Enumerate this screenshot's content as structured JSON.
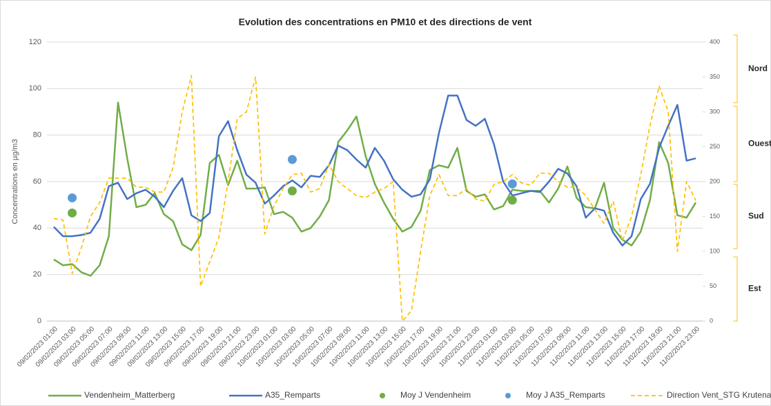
{
  "chart_data": {
    "type": "line",
    "title": "Evolution des concentrations en PM10 et des directions de vent",
    "y_label": "Concentrations en µg/m3",
    "categories": [
      "09/02/2023 01:00",
      null,
      "09/02/2023 03:00",
      null,
      "09/02/2023 05:00",
      null,
      "09/02/2023 07:00",
      null,
      "09/02/2023 09:00",
      null,
      "09/02/2023 11:00",
      null,
      "09/02/2023 13:00",
      null,
      "09/02/2023 15:00",
      null,
      "09/02/2023 17:00",
      null,
      "09/02/2023 19:00",
      null,
      "09/02/2023 21:00",
      null,
      "09/02/2023 23:00",
      null,
      "10/02/2023 01:00",
      null,
      "10/02/2023 03:00",
      null,
      "10/02/2023 05:00",
      null,
      "10/02/2023 07:00",
      null,
      "10/02/2023 09:00",
      null,
      "10/02/2023 11:00",
      null,
      "10/02/2023 13:00",
      null,
      "10/02/2023 15:00",
      null,
      "10/02/2023 17:00",
      null,
      "10/02/2023 19:00",
      null,
      "10/02/2023 21:00",
      null,
      "10/02/2023 23:00",
      null,
      "11/02/2023 01:00",
      null,
      "11/02/2023 03:00",
      null,
      "11/02/2023 05:00",
      null,
      "11/02/2023 07:00",
      null,
      "11/02/2023 09:00",
      null,
      "11/02/2023 11:00",
      null,
      "11/02/2023 13:00",
      null,
      "11/02/2023 15:00",
      null,
      "11/02/2023 17:00",
      null,
      "11/02/2023 19:00",
      null,
      "11/02/2023 21:00",
      null,
      "11/02/2023 23:00"
    ],
    "series": [
      {
        "name": "Vendenheim_Matterberg",
        "color": "#70ad47",
        "type": "line",
        "values": [
          26.5,
          24,
          24.5,
          21,
          19.5,
          24,
          36.5,
          94,
          70,
          49,
          50,
          55,
          46,
          43,
          33,
          30.5,
          37,
          68,
          71.5,
          58.5,
          69,
          57,
          57,
          57.5,
          46,
          47,
          44.5,
          38.5,
          40,
          45,
          52,
          77,
          82,
          88,
          71,
          59,
          51,
          44,
          38.5,
          40.5,
          47.5,
          65,
          67,
          66,
          74.5,
          56,
          53.5,
          54.5,
          48,
          49.5,
          56.5,
          56,
          56,
          56,
          51,
          57,
          66.5,
          53,
          49,
          48.5,
          59.5,
          40,
          35,
          32.5,
          38.5,
          52,
          77,
          68,
          45.5,
          44.5,
          51
        ]
      },
      {
        "name": "A35_Remparts",
        "color": "#4472c4",
        "type": "line",
        "values": [
          40.5,
          36.5,
          36.5,
          37,
          38,
          44,
          58,
          59.5,
          52.5,
          55,
          56.5,
          53.5,
          49,
          56,
          61.5,
          45.5,
          43,
          46.5,
          79.5,
          86,
          73.5,
          63,
          59.5,
          50.5,
          54,
          58,
          60.5,
          57.5,
          62.5,
          62,
          67,
          75.5,
          73.5,
          69.5,
          66,
          74.5,
          69,
          61,
          56.5,
          53.5,
          54.5,
          61,
          81,
          97,
          97,
          86.5,
          84,
          87,
          76,
          60,
          54,
          55,
          56,
          55.5,
          60,
          65.5,
          63.5,
          58,
          44.5,
          48.5,
          47.5,
          38,
          32.5,
          36.5,
          52.5,
          59,
          74.5,
          84,
          93,
          69,
          70
        ]
      },
      {
        "name": "Moy J Vendenheim",
        "color": "#70ad47",
        "type": "scatter",
        "values": [
          null,
          null,
          46.5,
          null,
          null,
          null,
          null,
          null,
          null,
          null,
          null,
          null,
          null,
          null,
          null,
          null,
          null,
          null,
          null,
          null,
          null,
          null,
          null,
          null,
          null,
          null,
          56,
          null,
          null,
          null,
          null,
          null,
          null,
          null,
          null,
          null,
          null,
          null,
          null,
          null,
          null,
          null,
          null,
          null,
          null,
          null,
          null,
          null,
          null,
          null,
          52,
          null,
          null,
          null,
          null,
          null,
          null,
          null,
          null,
          null,
          null,
          null,
          null,
          null,
          null,
          null,
          null,
          null,
          null,
          null,
          null
        ]
      },
      {
        "name": "Moy J A35_Remparts",
        "color": "#5b9bd5",
        "type": "scatter",
        "values": [
          null,
          null,
          53,
          null,
          null,
          null,
          null,
          null,
          null,
          null,
          null,
          null,
          null,
          null,
          null,
          null,
          null,
          null,
          null,
          null,
          null,
          null,
          null,
          null,
          null,
          null,
          69.5,
          null,
          null,
          null,
          null,
          null,
          null,
          null,
          null,
          null,
          null,
          null,
          null,
          null,
          null,
          null,
          null,
          null,
          null,
          null,
          null,
          null,
          null,
          null,
          59,
          null,
          null,
          null,
          null,
          null,
          null,
          null,
          null,
          null,
          null,
          null,
          null,
          null,
          null,
          null,
          null,
          null,
          null,
          null,
          null
        ]
      },
      {
        "name": "Direction Vent_STG Krutenau degre",
        "color": "#ffc000",
        "type": "line",
        "dash": true,
        "axis": "y2",
        "values": [
          147,
          145,
          68,
          105,
          150,
          170,
          205,
          205,
          205,
          192,
          192,
          185,
          185,
          220,
          300,
          352,
          50,
          85,
          120,
          200,
          290,
          300,
          350,
          125,
          165,
          190,
          210,
          212,
          185,
          190,
          225,
          200,
          190,
          180,
          177,
          185,
          190,
          200,
          0,
          15,
          100,
          180,
          210,
          180,
          180,
          190,
          175,
          172,
          196,
          200,
          210,
          198,
          195,
          212,
          212,
          200,
          192,
          192,
          180,
          160,
          140,
          172,
          115,
          150,
          210,
          280,
          337,
          300,
          100,
          200,
          173
        ]
      }
    ],
    "ylim": [
      0,
      120
    ],
    "yticks": [
      0,
      20,
      40,
      60,
      80,
      100,
      120
    ],
    "y2lim": [
      0,
      400
    ],
    "y2ticks": [
      0,
      50,
      100,
      150,
      200,
      250,
      300,
      350,
      400
    ],
    "y2_bands": [
      {
        "label": "Nord",
        "range": [
          313,
          410
        ]
      },
      {
        "label": "Ouest",
        "range": [
          200,
          308
        ]
      },
      {
        "label": "Sud",
        "range": [
          104,
          196
        ]
      },
      {
        "label": "Est",
        "range": [
          0,
          92
        ]
      }
    ],
    "grid": true,
    "legend": "bottom"
  }
}
